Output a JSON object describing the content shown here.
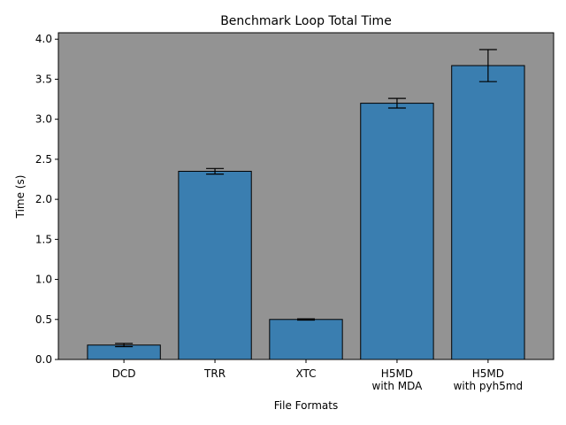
{
  "chart_data": {
    "type": "bar",
    "title": "Benchmark Loop Total Time",
    "xlabel": "File Formats",
    "ylabel": "Time (s)",
    "categories": [
      [
        "DCD"
      ],
      [
        "TRR"
      ],
      [
        "XTC"
      ],
      [
        "H5MD",
        "with MDA"
      ],
      [
        "H5MD",
        "with pyh5md"
      ]
    ],
    "values": [
      0.18,
      2.35,
      0.5,
      3.2,
      3.67
    ],
    "errors": [
      0.02,
      0.035,
      0.008,
      0.06,
      0.2
    ],
    "ylim": [
      0,
      4.08
    ],
    "yticks": [
      0.0,
      0.5,
      1.0,
      1.5,
      2.0,
      2.5,
      3.0,
      3.5,
      4.0
    ],
    "ytick_labels": [
      "0.0",
      "0.5",
      "1.0",
      "1.5",
      "2.0",
      "2.5",
      "3.0",
      "3.5",
      "4.0"
    ],
    "colors": {
      "plot_background": "#939393",
      "bar": "#3a7eb0",
      "bar_edge": "#000000",
      "error_bar": "#000000"
    },
    "grid": false,
    "legend": "none"
  }
}
